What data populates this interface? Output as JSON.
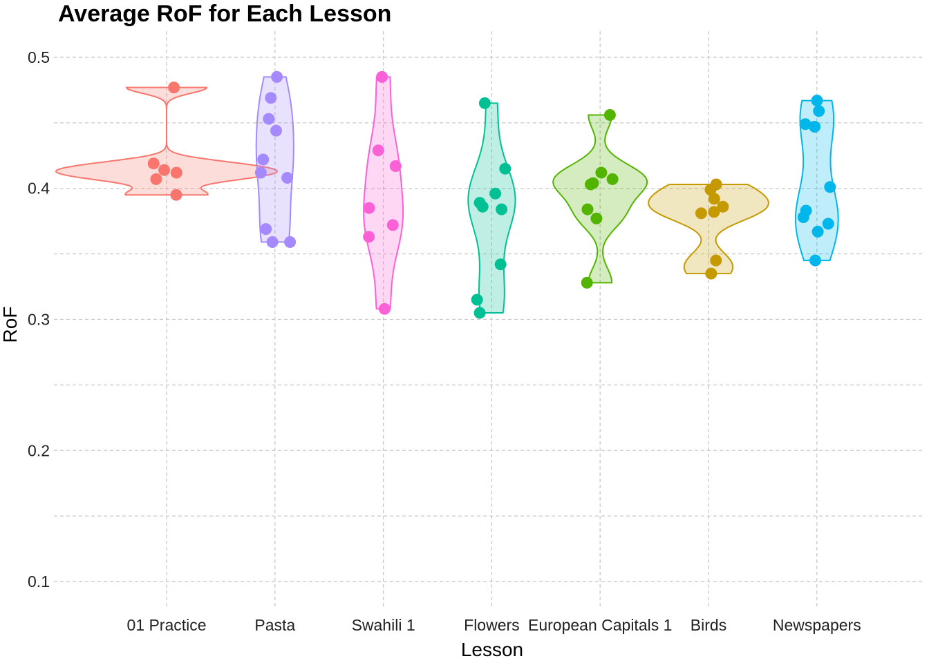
{
  "chart_data": {
    "type": "violin",
    "title": "Average RoF for Each Lesson",
    "xlabel": "Lesson",
    "ylabel": "RoF",
    "ylim": [
      0.08,
      0.52
    ],
    "yticks": [
      0.1,
      0.2,
      0.3,
      0.4,
      0.5
    ],
    "grid": true,
    "legend": "none",
    "categories": [
      "01 Practice",
      "Pasta",
      "Swahili 1",
      "Flowers",
      "European Capitals 1",
      "Birds",
      "Newspapers"
    ],
    "series": [
      {
        "category": "01 Practice",
        "color": "#F8766D",
        "points": [
          0.477,
          0.419,
          0.414,
          0.412,
          0.407,
          0.395
        ]
      },
      {
        "category": "Pasta",
        "color": "#A58AFF",
        "points": [
          0.485,
          0.469,
          0.453,
          0.444,
          0.422,
          0.412,
          0.408,
          0.369,
          0.359,
          0.359
        ]
      },
      {
        "category": "Swahili 1",
        "color": "#FB61D7",
        "points": [
          0.485,
          0.429,
          0.417,
          0.385,
          0.372,
          0.363,
          0.308
        ]
      },
      {
        "category": "Flowers",
        "color": "#00C094",
        "points": [
          0.465,
          0.415,
          0.396,
          0.389,
          0.386,
          0.384,
          0.342,
          0.315,
          0.305
        ]
      },
      {
        "category": "European Capitals 1",
        "color": "#53B400",
        "points": [
          0.456,
          0.412,
          0.407,
          0.404,
          0.403,
          0.384,
          0.377,
          0.328
        ]
      },
      {
        "category": "Birds",
        "color": "#C49A00",
        "points": [
          0.403,
          0.399,
          0.392,
          0.386,
          0.382,
          0.381,
          0.345,
          0.335
        ]
      },
      {
        "category": "Newspapers",
        "color": "#00B6EB",
        "points": [
          0.467,
          0.459,
          0.449,
          0.447,
          0.401,
          0.383,
          0.378,
          0.373,
          0.367,
          0.345
        ]
      }
    ]
  }
}
